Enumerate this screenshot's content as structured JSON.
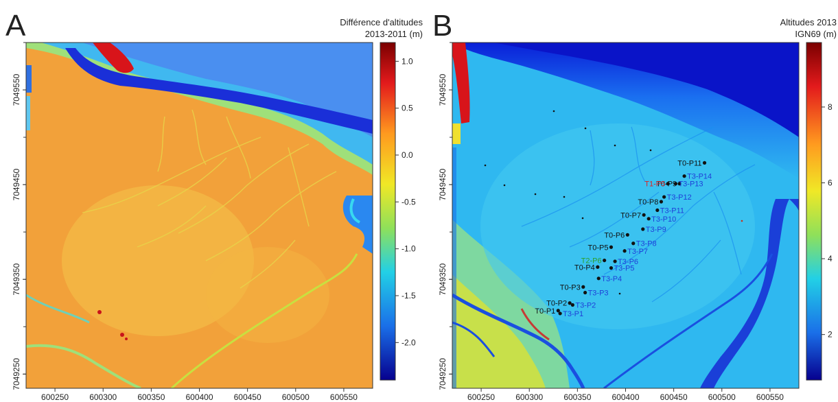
{
  "panels": [
    {
      "id": "A",
      "letter": "A",
      "legend_title_line1": "Différence d'altitudes",
      "legend_title_line2": "2013-2011 (m)",
      "colorbar_ticks": [
        "1.0",
        "0.5",
        "0.0",
        "-0.5",
        "-1.0",
        "-1.5",
        "-2.0"
      ],
      "x_ticks": [
        "600250",
        "600300",
        "600350",
        "600400",
        "600450",
        "600500",
        "600550"
      ],
      "y_ticks": [
        "7049550",
        "7049450",
        "7049350",
        "7049250"
      ]
    },
    {
      "id": "B",
      "letter": "B",
      "legend_title_line1": "Altitudes 2013",
      "legend_title_line2": "IGN69 (m)",
      "colorbar_ticks": [
        "8",
        "6",
        "4",
        "2"
      ],
      "x_ticks": [
        "600250",
        "600300",
        "600350",
        "600400",
        "600450",
        "600500",
        "600550"
      ],
      "y_ticks": [
        "7049550",
        "7049450",
        "7049350",
        "7049250"
      ]
    }
  ],
  "stations_T0": [
    {
      "label": "T0-P1",
      "x": 600330,
      "y": 7049317
    },
    {
      "label": "T0-P2",
      "x": 600342,
      "y": 7049325
    },
    {
      "label": "T0-P3",
      "x": 600356,
      "y": 7049342
    },
    {
      "label": "T0-P4",
      "x": 600371,
      "y": 7049363
    },
    {
      "label": "T0-P5",
      "x": 600385,
      "y": 7049384
    },
    {
      "label": "T0-P6",
      "x": 600402,
      "y": 7049397
    },
    {
      "label": "T0-P7",
      "x": 600419,
      "y": 7049418
    },
    {
      "label": "T0-P8",
      "x": 600437,
      "y": 7049432
    },
    {
      "label": "T0-P9",
      "x": 600456,
      "y": 7049451
    },
    {
      "label": "T0-P11",
      "x": 600482,
      "y": 7049473
    }
  ],
  "stations_T3": [
    {
      "label": "T3-P1",
      "x": 600332,
      "y": 7049314
    },
    {
      "label": "T3-P2",
      "x": 600345,
      "y": 7049323
    },
    {
      "label": "T3-P3",
      "x": 600358,
      "y": 7049336
    },
    {
      "label": "T3-P4",
      "x": 600372,
      "y": 7049351
    },
    {
      "label": "T3-P5",
      "x": 600385,
      "y": 7049362
    },
    {
      "label": "T3-P6",
      "x": 600389,
      "y": 7049369
    },
    {
      "label": "T3-P7",
      "x": 600399,
      "y": 7049380
    },
    {
      "label": "T3-P8",
      "x": 600408,
      "y": 7049388
    },
    {
      "label": "T3-P9",
      "x": 600418,
      "y": 7049403
    },
    {
      "label": "T3-P10",
      "x": 600424,
      "y": 7049414
    },
    {
      "label": "T3-P11",
      "x": 600433,
      "y": 7049423
    },
    {
      "label": "T3-P12",
      "x": 600440,
      "y": 7049437
    },
    {
      "label": "T3-P13",
      "x": 600452,
      "y": 7049451
    },
    {
      "label": "T3-P14",
      "x": 600461,
      "y": 7049459
    }
  ],
  "stations_other": [
    {
      "label": "T1-P5",
      "x": 600444,
      "y": 7049451,
      "color": "#e02020"
    },
    {
      "label": "T2-P6",
      "x": 600378,
      "y": 7049370,
      "color": "#2ca02c"
    }
  ],
  "colors": {
    "T0": "#111111",
    "T3": "#1f3fd8",
    "panelA_base": "#f2a13a",
    "panelB_base": "#2fb8f0"
  }
}
